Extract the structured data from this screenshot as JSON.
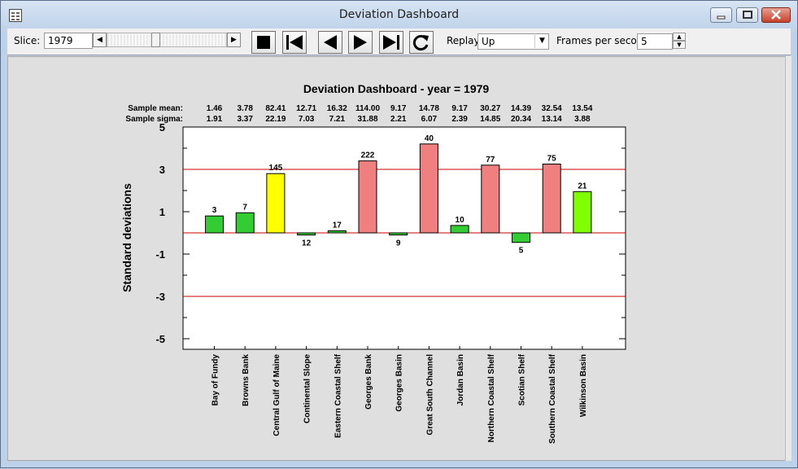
{
  "window": {
    "title": "Deviation Dashboard"
  },
  "toolbar": {
    "slice_label": "Slice:",
    "slice_value": "1979",
    "replay_label": "Replay:",
    "replay_value": "Up",
    "fps_label": "Frames per second:",
    "fps_value": "5"
  },
  "chart_data": {
    "type": "bar",
    "title": "Deviation Dashboard - year = 1979",
    "ylabel": "Standard deviations",
    "xlabel": "",
    "ylim": [
      -5.5,
      5
    ],
    "yticks": [
      "5",
      "3",
      "1",
      "-1",
      "-3",
      "-5"
    ],
    "reference_lines": [
      3,
      0,
      -3
    ],
    "stats_labels": {
      "mean": "Sample mean:",
      "sigma": "Sample sigma:"
    },
    "categories": [
      "Bay of Fundy",
      "Browns Bank",
      "Central Gulf of Maine",
      "Continental Slope",
      "Eastern Coastal Shelf",
      "Georges Bank",
      "Georges Basin",
      "Great South Channel",
      "Jordan Basin",
      "Northern Coastal Shelf",
      "Scotian Shelf",
      "Southern Coastal Shelf",
      "Wilkinson Basin"
    ],
    "values": [
      0.8,
      0.95,
      2.8,
      -0.1,
      0.1,
      3.4,
      -0.1,
      4.2,
      0.35,
      3.2,
      -0.45,
      3.25,
      1.95
    ],
    "bar_labels": [
      "3",
      "7",
      "145",
      "12",
      "17",
      "222",
      "9",
      "40",
      "10",
      "77",
      "5",
      "75",
      "21"
    ],
    "sample_mean": [
      "1.46",
      "3.78",
      "82.41",
      "12.71",
      "16.32",
      "114.00",
      "9.17",
      "14.78",
      "9.17",
      "30.27",
      "14.39",
      "32.54",
      "13.54"
    ],
    "sample_sigma": [
      "1.91",
      "3.37",
      "22.19",
      "7.03",
      "7.21",
      "31.88",
      "2.21",
      "6.07",
      "2.39",
      "14.85",
      "20.34",
      "13.14",
      "3.88"
    ],
    "colors": [
      "#33cc33",
      "#33cc33",
      "#ffff00",
      "#33cc33",
      "#33cc33",
      "#f08080",
      "#33cc33",
      "#f08080",
      "#33cc33",
      "#f08080",
      "#33cc33",
      "#f08080",
      "#80ff00"
    ],
    "line_color": "#cc0000"
  }
}
